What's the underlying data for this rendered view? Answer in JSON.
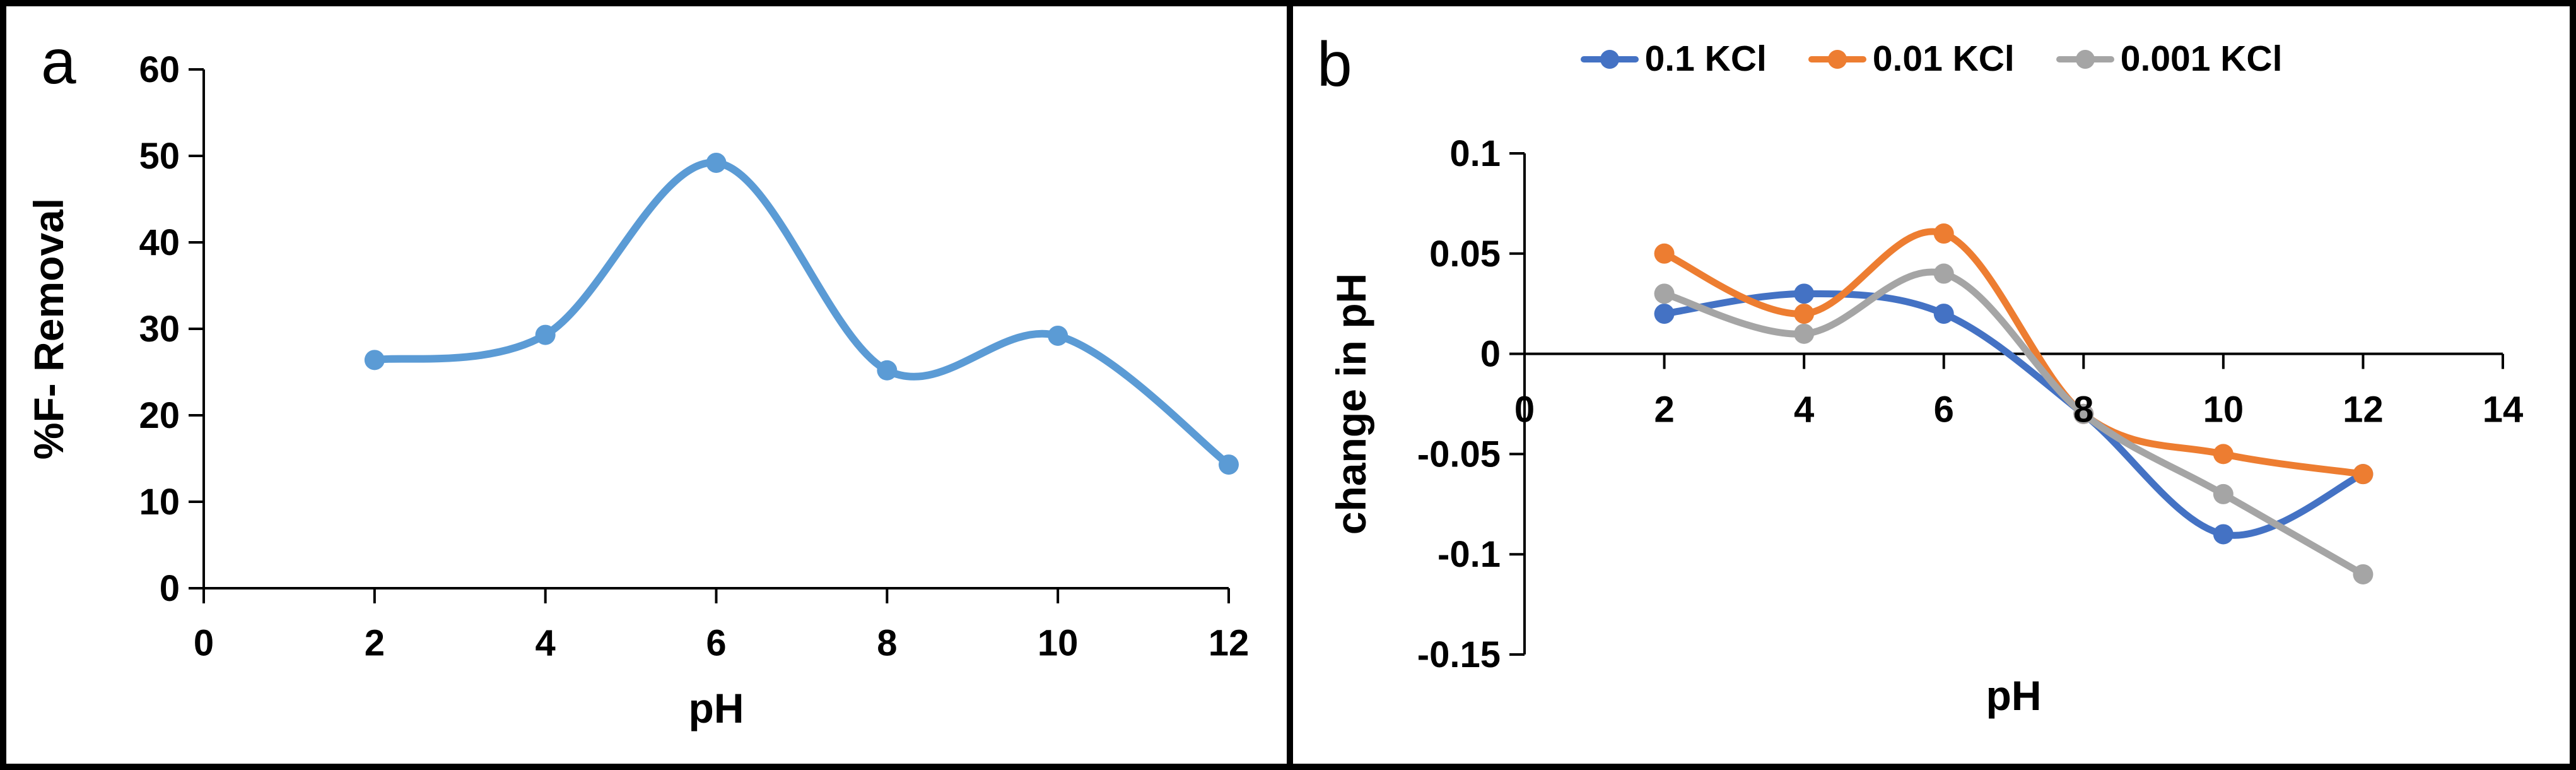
{
  "figure": {
    "panels": [
      {
        "label": "a"
      },
      {
        "label": "b"
      }
    ]
  },
  "colors": {
    "axis": "#000000",
    "panel_border": "#000000",
    "chart_a_series": "#5B9BD5",
    "chart_b_blue": "#4472C4",
    "chart_b_orange": "#ED7D31",
    "chart_b_gray": "#A5A5A5"
  },
  "chart_data": [
    {
      "type": "line",
      "panel_label": "a",
      "title": "",
      "xlabel": "pH",
      "ylabel": "%F- Removal",
      "x": [
        2,
        4,
        6,
        8,
        10,
        12
      ],
      "series": [
        {
          "name": "%F- Removal",
          "color": "#5B9BD5",
          "values": [
            26.4,
            29.3,
            49.2,
            25.2,
            29.2,
            14.3
          ]
        }
      ],
      "xlim": [
        0,
        12
      ],
      "ylim": [
        0,
        60
      ],
      "xticks": [
        0,
        2,
        4,
        6,
        8,
        10,
        12
      ],
      "yticks": [
        0,
        10,
        20,
        30,
        40,
        50,
        60
      ],
      "xtick_labels": [
        "0",
        "2",
        "4",
        "6",
        "8",
        "10",
        "12"
      ],
      "ytick_labels": [
        "0",
        "10",
        "20",
        "30",
        "40",
        "50",
        "60"
      ],
      "grid": false,
      "legend": false,
      "smooth": true,
      "marker": "circle"
    },
    {
      "type": "line",
      "panel_label": "b",
      "title": "",
      "xlabel": "pH",
      "ylabel": "change in pH",
      "x": [
        2,
        4,
        6,
        8,
        10,
        12
      ],
      "series": [
        {
          "name": "0.1 KCl",
          "color": "#4472C4",
          "values": [
            0.02,
            0.03,
            0.02,
            -0.03,
            -0.09,
            -0.06
          ]
        },
        {
          "name": "0.01 KCl",
          "color": "#ED7D31",
          "values": [
            0.05,
            0.02,
            0.06,
            -0.03,
            -0.05,
            -0.06
          ]
        },
        {
          "name": "0.001 KCl",
          "color": "#A5A5A5",
          "values": [
            0.03,
            0.01,
            0.04,
            -0.03,
            -0.07,
            -0.11
          ]
        }
      ],
      "xlim": [
        0,
        14
      ],
      "ylim": [
        -0.15,
        0.1
      ],
      "xticks": [
        0,
        2,
        4,
        6,
        8,
        10,
        12,
        14
      ],
      "yticks": [
        0.1,
        0.05,
        0,
        -0.05,
        -0.1,
        -0.15
      ],
      "xtick_labels": [
        "0",
        "2",
        "4",
        "6",
        "8",
        "10",
        "12",
        "14"
      ],
      "ytick_labels": [
        "0.1",
        "0.05",
        "0",
        "-0.05",
        "-0.1",
        "-0.15"
      ],
      "grid": false,
      "legend": true,
      "legend_position": "top",
      "smooth": true,
      "marker": "circle"
    }
  ]
}
